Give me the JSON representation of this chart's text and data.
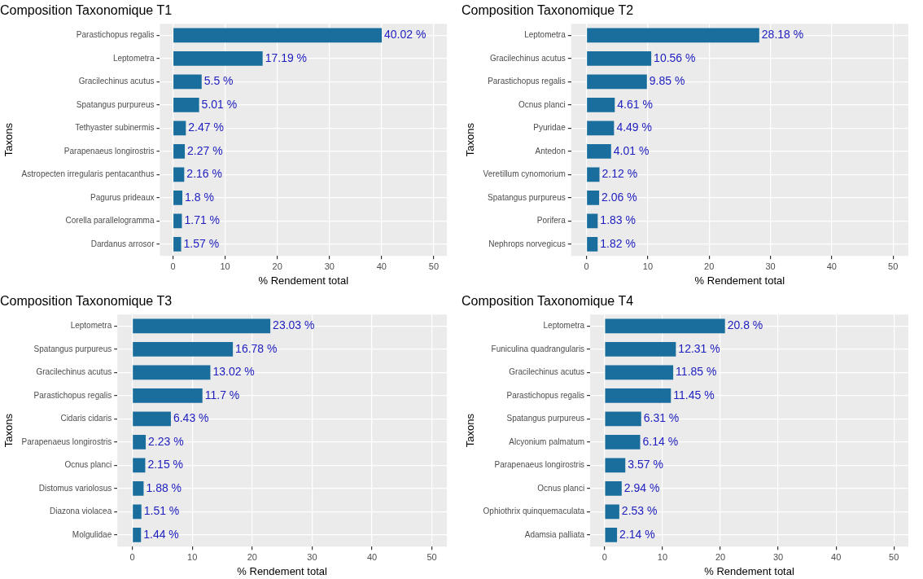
{
  "chart_data": [
    {
      "type": "bar",
      "orientation": "horizontal",
      "title": "Composition Taxonomique T1",
      "xlabel": "% Rendement total",
      "ylabel": "Taxons",
      "categories": [
        "Parastichopus regalis",
        "Leptometra",
        "Gracilechinus acutus",
        "Spatangus purpureus",
        "Tethyaster subinermis",
        "Parapenaeus longirostris",
        "Astropecten irregularis pentacanthus",
        "Pagurus prideaux",
        "Corella parallelogramma",
        "Dardanus arrosor"
      ],
      "values": [
        40.02,
        17.19,
        5.5,
        5.01,
        2.47,
        2.27,
        2.16,
        1.8,
        1.71,
        1.57
      ],
      "value_labels": [
        "40.02 %",
        "17.19 %",
        "5.5 %",
        "5.01 %",
        "2.47 %",
        "2.27 %",
        "2.16 %",
        "1.8 %",
        "1.71 %",
        "1.57 %"
      ],
      "color": "#1a6e9e",
      "xlim": [
        -2.5,
        52.5
      ],
      "xticks": [
        0,
        10,
        20,
        30,
        40,
        50
      ],
      "grid": true
    },
    {
      "type": "bar",
      "orientation": "horizontal",
      "title": "Composition Taxonomique T2",
      "xlabel": "% Rendement total",
      "ylabel": "Taxons",
      "categories": [
        "Leptometra",
        "Gracilechinus acutus",
        "Parastichopus regalis",
        "Ocnus planci",
        "Pyuridae",
        "Antedon",
        "Veretillum cynomorium",
        "Spatangus purpureus",
        "Porifera",
        "Nephrops norvegicus"
      ],
      "values": [
        28.18,
        10.56,
        9.85,
        4.61,
        4.49,
        4.01,
        2.12,
        2.06,
        1.83,
        1.82
      ],
      "value_labels": [
        "28.18 %",
        "10.56 %",
        "9.85 %",
        "4.61 %",
        "4.49 %",
        "4.01 %",
        "2.12 %",
        "2.06 %",
        "1.83 %",
        "1.82 %"
      ],
      "color": "#1a6e9e",
      "xlim": [
        -2.5,
        52.5
      ],
      "xticks": [
        0,
        10,
        20,
        30,
        40,
        50
      ],
      "grid": true
    },
    {
      "type": "bar",
      "orientation": "horizontal",
      "title": "Composition Taxonomique T3",
      "xlabel": "% Rendement total",
      "ylabel": "Taxons",
      "categories": [
        "Leptometra",
        "Spatangus purpureus",
        "Gracilechinus acutus",
        "Parastichopus regalis",
        "Cidaris cidaris",
        "Parapenaeus longirostris",
        "Ocnus planci",
        "Distomus variolosus",
        "Diazona violacea",
        "Molgulidae"
      ],
      "values": [
        23.03,
        16.78,
        13.02,
        11.7,
        6.43,
        2.23,
        2.15,
        1.88,
        1.51,
        1.44
      ],
      "value_labels": [
        "23.03 %",
        "16.78 %",
        "13.02 %",
        "11.7 %",
        "6.43 %",
        "2.23 %",
        "2.15 %",
        "1.88 %",
        "1.51 %",
        "1.44 %"
      ],
      "color": "#1a6e9e",
      "xlim": [
        -2.5,
        52.5
      ],
      "xticks": [
        0,
        10,
        20,
        30,
        40,
        50
      ],
      "grid": true
    },
    {
      "type": "bar",
      "orientation": "horizontal",
      "title": "Composition Taxonomique T4",
      "xlabel": "% Rendement total",
      "ylabel": "Taxons",
      "categories": [
        "Leptometra",
        "Funiculina quadrangularis",
        "Gracilechinus acutus",
        "Parastichopus regalis",
        "Spatangus purpureus",
        "Alcyonium palmatum",
        "Parapenaeus longirostris",
        "Ocnus planci",
        "Ophiothrix quinquemaculata",
        "Adamsia palliata"
      ],
      "values": [
        20.8,
        12.31,
        11.85,
        11.45,
        6.31,
        6.14,
        3.57,
        2.94,
        2.53,
        2.14
      ],
      "value_labels": [
        "20.8 %",
        "12.31 %",
        "11.85 %",
        "11.45 %",
        "6.31 %",
        "6.14 %",
        "3.57 %",
        "2.94 %",
        "2.53 %",
        "2.14 %"
      ],
      "color": "#1a6e9e",
      "xlim": [
        -2.5,
        52.5
      ],
      "xticks": [
        0,
        10,
        20,
        30,
        40,
        50
      ],
      "grid": true
    }
  ]
}
